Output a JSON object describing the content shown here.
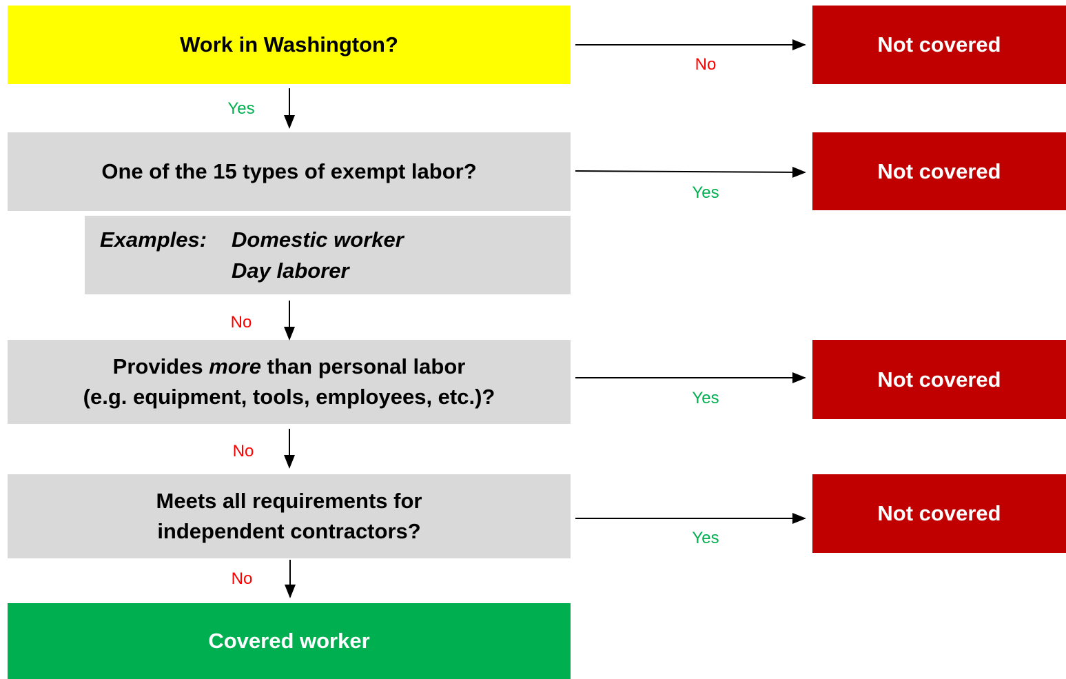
{
  "steps": [
    {
      "question": "Work in Washington?",
      "side_label": "No",
      "side_outcome": "Not covered",
      "down_label": "Yes"
    },
    {
      "question": "One of the 15 types of exempt labor?",
      "side_label": "Yes",
      "side_outcome": "Not covered",
      "examples": {
        "heading": "Examples:",
        "items": [
          "Domestic worker",
          "Day laborer"
        ]
      },
      "down_label": "No"
    },
    {
      "question_parts": [
        "Provides",
        "more",
        "than personal labor"
      ],
      "question_line2": "(e.g. equipment, tools, employees, etc.)?",
      "side_label": "Yes",
      "side_outcome": "Not covered",
      "down_label": "No"
    },
    {
      "question_lines": [
        "Meets all requirements for",
        "independent contractors?"
      ],
      "side_label": "Yes",
      "side_outcome": "Not covered",
      "down_label": "No"
    }
  ],
  "final": "Covered worker"
}
